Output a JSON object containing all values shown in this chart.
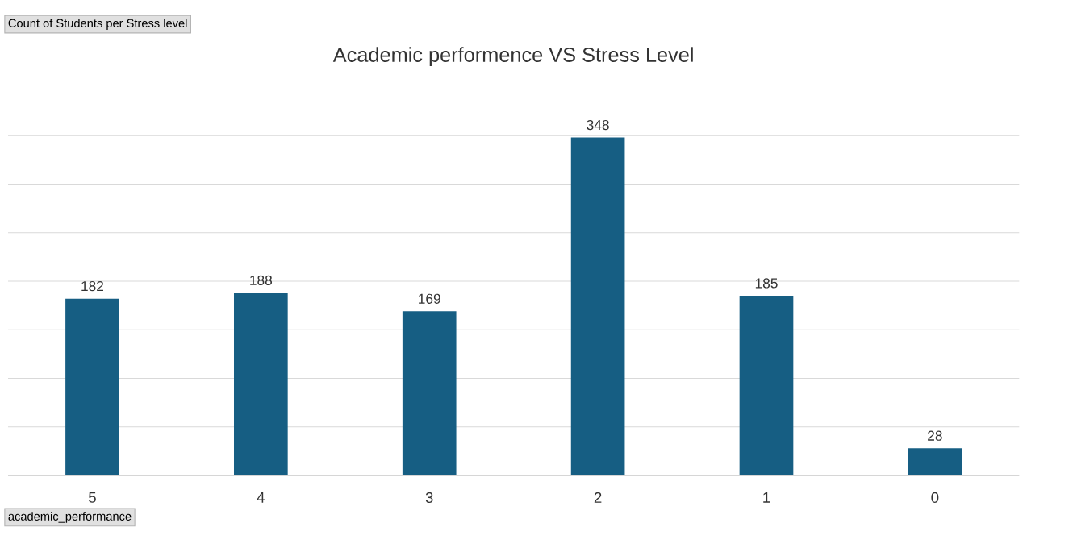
{
  "chart_data": {
    "type": "bar",
    "title": "Academic performence VS Stress Level",
    "categories": [
      "5",
      "4",
      "3",
      "2",
      "1",
      "0"
    ],
    "values": [
      182,
      188,
      169,
      348,
      185,
      28
    ],
    "color": "#165e83",
    "data_labels": true,
    "tick_labels": "x",
    "grid": "y",
    "annotations": [
      "Count of Students per Stress level",
      "academic_performance"
    ]
  }
}
